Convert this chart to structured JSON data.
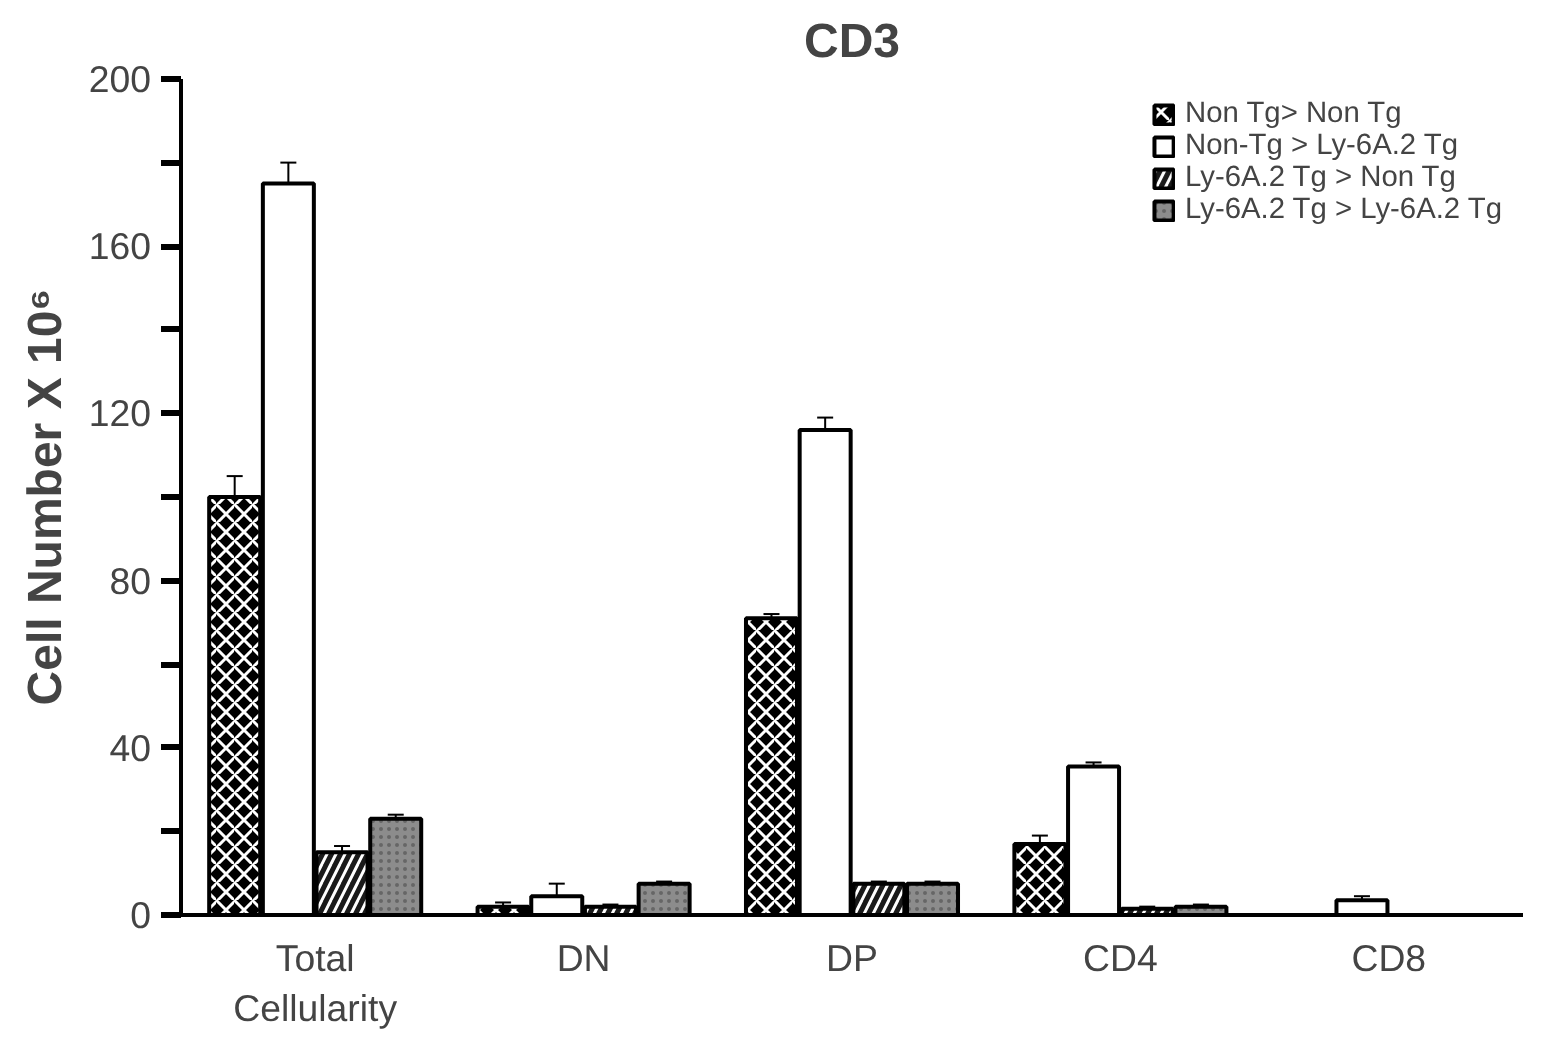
{
  "chart_data": {
    "type": "bar",
    "title": "CD3",
    "ylabel": "Cell Number X 10⁶",
    "categories": [
      "Total\nCellularity",
      "DN",
      "DP",
      "CD4",
      "CD8"
    ],
    "series": [
      {
        "name": "Non Tg> Non Tg",
        "color": "#000000",
        "values": [
          100,
          2,
          71,
          17,
          null
        ],
        "errors": [
          5,
          1,
          1,
          2,
          null
        ]
      },
      {
        "name": "Non-Tg > Ly-6A.2 Tg",
        "color": "#ffffff",
        "values": [
          175,
          4.5,
          116,
          35.5,
          3.5
        ],
        "errors": [
          5,
          3,
          3,
          1,
          1
        ]
      },
      {
        "name": "Ly-6A.2 Tg > Non Tg",
        "color": "#1a1a1a",
        "values": [
          15,
          2,
          7.5,
          1.5,
          null
        ],
        "errors": [
          1.5,
          0.5,
          0.5,
          0.5,
          null
        ]
      },
      {
        "name": "Ly-6A.2 Tg > Ly-6A.2 Tg",
        "color": "#8c8c8c",
        "values": [
          23,
          7.5,
          7.5,
          2,
          null
        ],
        "errors": [
          1,
          0.5,
          0.5,
          0.5,
          null
        ]
      }
    ],
    "ylim": [
      0,
      200
    ],
    "yticks": [
      0,
      {
        "value": 20,
        "label": null
      },
      40,
      {
        "value": 60,
        "label": null
      },
      80,
      {
        "value": 100,
        "label": null
      },
      120,
      {
        "value": 140,
        "label": null
      },
      160,
      {
        "value": 180,
        "label": null
      },
      200
    ],
    "grid": false,
    "legend": "top right"
  }
}
